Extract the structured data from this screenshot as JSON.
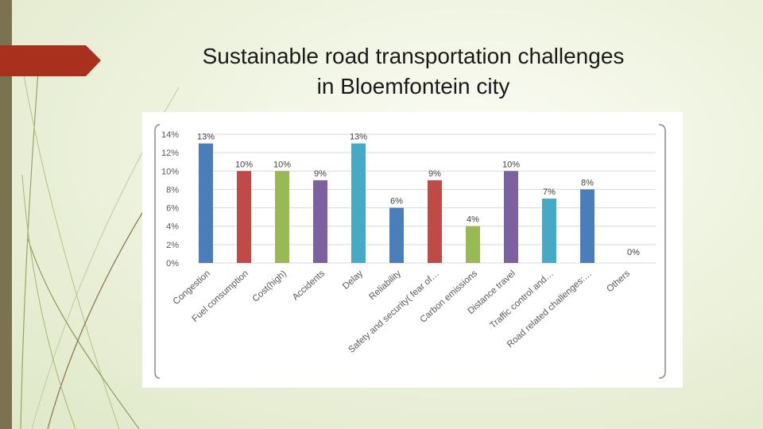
{
  "slide": {
    "title_line1": "Sustainable road transportation challenges",
    "title_line2": "in Bloemfontein city"
  },
  "colors": {
    "background": "#eef3df",
    "left_bar": "#7a7352",
    "accent_tab": "#a8301c",
    "bar_blue": "#4a7ebb",
    "bar_red": "#be4b48",
    "bar_green": "#98b954",
    "bar_purple": "#7d60a0",
    "bar_teal": "#46aac5"
  },
  "chart_data": {
    "type": "bar",
    "title": "",
    "xlabel": "",
    "ylabel": "",
    "ylim": [
      0,
      14
    ],
    "y_ticks": [
      "0%",
      "2%",
      "4%",
      "6%",
      "8%",
      "10%",
      "12%",
      "14%"
    ],
    "grid": true,
    "legend": "none",
    "categories": [
      "Congestion",
      "Fuel consumption",
      "Cost(high)",
      "Accidents",
      "Delay",
      "Reliability",
      "Safety and security( fear of…",
      "Carbon emissions",
      "Distance travel",
      "Traffic control and…",
      "Road related challenges:…",
      "Others"
    ],
    "values": [
      13,
      10,
      10,
      9,
      13,
      6,
      9,
      4,
      10,
      7,
      8,
      0
    ],
    "data_labels": [
      "13%",
      "10%",
      "10%",
      "9%",
      "13%",
      "6%",
      "9%",
      "4%",
      "10%",
      "7%",
      "8%",
      "0%"
    ],
    "bar_colors": [
      "#4a7ebb",
      "#be4b48",
      "#98b954",
      "#7d60a0",
      "#46aac5",
      "#4a7ebb",
      "#be4b48",
      "#98b954",
      "#7d60a0",
      "#46aac5",
      "#4a7ebb",
      "#be4b48"
    ]
  }
}
